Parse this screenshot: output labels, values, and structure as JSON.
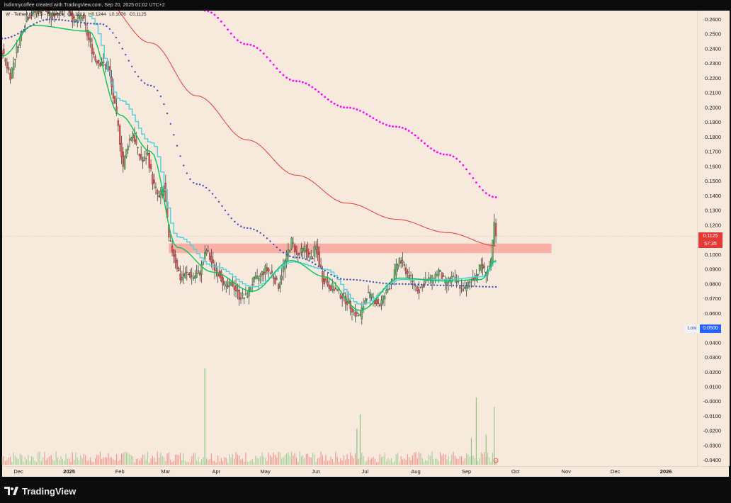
{
  "header": {
    "author_line": "lsdinmycoffee created with TradingView.com, Sep 20, 2025 01:02 UTC+2"
  },
  "legend": {
    "symbol": "W · TetherUS · 1D · Binance",
    "open": "O0.1212",
    "high": "H0.1244",
    "low": "L0.1076",
    "close": "C0.1125"
  },
  "price_tag": {
    "price": "0.1125",
    "countdown": "57:35"
  },
  "low_marker": {
    "label": "Low",
    "price": "0.0500"
  },
  "brand": {
    "name": "TradingView"
  },
  "colors": {
    "background": "#f7e9dc",
    "candle_up": "#66bb6a",
    "candle_down": "#ef5350",
    "ema_fast": "#4dd0e1",
    "ema_slow": "#00c853",
    "ma_dotted_blue": "#3f51b5",
    "ma_red": "#e53935",
    "ma_magenta": "#ff00ff",
    "resistance_zone": "#f7a8a0"
  },
  "chart_data": {
    "type": "candlestick",
    "symbol": "W/USDT",
    "interval": "1D",
    "exchange": "Binance",
    "y_ticks": [
      "0.2600",
      "0.2500",
      "0.2400",
      "0.2300",
      "0.2200",
      "0.2100",
      "0.2000",
      "0.1900",
      "0.1800",
      "0.1700",
      "0.1600",
      "0.1500",
      "0.1400",
      "0.1300",
      "0.1200",
      "0.1100",
      "0.1000",
      "0.0900",
      "0.0800",
      "0.0700",
      "0.0600",
      "0.0500",
      "0.0400",
      "0.0300",
      "0.0200",
      "0.0100",
      "-0.0000",
      "-0.0100",
      "-0.0200",
      "-0.0300",
      "-0.0400"
    ],
    "x_ticks": [
      "Dec",
      "2025",
      "Feb",
      "Mar",
      "Apr",
      "May",
      "Jun",
      "Jul",
      "Aug",
      "Sep",
      "Oct",
      "Nov",
      "Dec",
      "2026"
    ],
    "x_range": [
      "2024-11-21",
      "2026-01-20"
    ],
    "y_range": [
      -0.044,
      0.266
    ],
    "resistance_zone": {
      "low": 0.101,
      "high": 0.1075,
      "from": "2025-03-03",
      "to": "2025-10-23"
    },
    "close_series": [
      [
        "2024-11-21",
        0.238
      ],
      [
        "2024-11-26",
        0.222
      ],
      [
        "2024-12-01",
        0.244
      ],
      [
        "2024-12-06",
        0.262
      ],
      [
        "2024-12-11",
        0.265
      ],
      [
        "2024-12-16",
        0.268
      ],
      [
        "2024-12-21",
        0.262
      ],
      [
        "2024-12-26",
        0.266
      ],
      [
        "2024-12-31",
        0.27
      ],
      [
        "2025-01-04",
        0.258
      ],
      [
        "2025-01-09",
        0.262
      ],
      [
        "2025-01-13",
        0.246
      ],
      [
        "2025-01-17",
        0.233
      ],
      [
        "2025-01-21",
        0.23
      ],
      [
        "2025-01-25",
        0.227
      ],
      [
        "2025-01-28",
        0.207
      ],
      [
        "2025-01-31",
        0.186
      ],
      [
        "2025-02-03",
        0.16
      ],
      [
        "2025-02-06",
        0.176
      ],
      [
        "2025-02-09",
        0.183
      ],
      [
        "2025-02-12",
        0.17
      ],
      [
        "2025-02-15",
        0.163
      ],
      [
        "2025-02-18",
        0.168
      ],
      [
        "2025-02-21",
        0.15
      ],
      [
        "2025-02-25",
        0.138
      ],
      [
        "2025-02-28",
        0.147
      ],
      [
        "2025-03-03",
        0.11
      ],
      [
        "2025-03-06",
        0.1
      ],
      [
        "2025-03-10",
        0.084
      ],
      [
        "2025-03-14",
        0.087
      ],
      [
        "2025-03-18",
        0.085
      ],
      [
        "2025-03-22",
        0.088
      ],
      [
        "2025-03-26",
        0.103
      ],
      [
        "2025-03-30",
        0.092
      ],
      [
        "2025-04-03",
        0.087
      ],
      [
        "2025-04-07",
        0.077
      ],
      [
        "2025-04-11",
        0.08
      ],
      [
        "2025-04-15",
        0.072
      ],
      [
        "2025-04-19",
        0.071
      ],
      [
        "2025-04-23",
        0.081
      ],
      [
        "2025-04-27",
        0.084
      ],
      [
        "2025-05-01",
        0.09
      ],
      [
        "2025-05-05",
        0.087
      ],
      [
        "2025-05-09",
        0.079
      ],
      [
        "2025-05-13",
        0.095
      ],
      [
        "2025-05-17",
        0.109
      ],
      [
        "2025-05-21",
        0.099
      ],
      [
        "2025-05-25",
        0.104
      ],
      [
        "2025-05-29",
        0.097
      ],
      [
        "2025-06-01",
        0.105
      ],
      [
        "2025-06-05",
        0.084
      ],
      [
        "2025-06-09",
        0.079
      ],
      [
        "2025-06-13",
        0.076
      ],
      [
        "2025-06-17",
        0.072
      ],
      [
        "2025-06-21",
        0.067
      ],
      [
        "2025-06-25",
        0.06
      ],
      [
        "2025-06-28",
        0.058
      ],
      [
        "2025-07-02",
        0.073
      ],
      [
        "2025-07-06",
        0.07
      ],
      [
        "2025-07-10",
        0.066
      ],
      [
        "2025-07-14",
        0.074
      ],
      [
        "2025-07-18",
        0.084
      ],
      [
        "2025-07-22",
        0.097
      ],
      [
        "2025-07-26",
        0.089
      ],
      [
        "2025-07-30",
        0.081
      ],
      [
        "2025-08-03",
        0.076
      ],
      [
        "2025-08-07",
        0.082
      ],
      [
        "2025-08-11",
        0.083
      ],
      [
        "2025-08-15",
        0.089
      ],
      [
        "2025-08-19",
        0.08
      ],
      [
        "2025-08-23",
        0.084
      ],
      [
        "2025-08-27",
        0.08
      ],
      [
        "2025-08-31",
        0.076
      ],
      [
        "2025-09-04",
        0.083
      ],
      [
        "2025-09-07",
        0.086
      ],
      [
        "2025-09-10",
        0.093
      ],
      [
        "2025-09-13",
        0.088
      ],
      [
        "2025-09-16",
        0.094
      ],
      [
        "2025-09-18",
        0.121
      ],
      [
        "2025-09-19",
        0.1125
      ]
    ],
    "last_candle": {
      "open": 0.1212,
      "high": 0.1244,
      "low": 0.1076,
      "close": 0.1125
    },
    "moving_averages": [
      {
        "color": "#4dd0e1",
        "style": "step-line",
        "points": [
          [
            "2025-01-13",
            0.262
          ],
          [
            "2025-02-01",
            0.205
          ],
          [
            "2025-02-20",
            0.176
          ],
          [
            "2025-03-08",
            0.112
          ],
          [
            "2025-03-30",
            0.092
          ],
          [
            "2025-04-23",
            0.078
          ],
          [
            "2025-05-17",
            0.095
          ],
          [
            "2025-06-06",
            0.09
          ],
          [
            "2025-06-28",
            0.066
          ],
          [
            "2025-07-22",
            0.083
          ],
          [
            "2025-08-20",
            0.083
          ],
          [
            "2025-09-10",
            0.085
          ],
          [
            "2025-09-19",
            0.096
          ]
        ]
      },
      {
        "color": "#00c853",
        "style": "line",
        "points": [
          [
            "2024-11-21",
            0.235
          ],
          [
            "2024-12-10",
            0.256
          ],
          [
            "2025-01-13",
            0.252
          ],
          [
            "2025-02-01",
            0.195
          ],
          [
            "2025-02-20",
            0.17
          ],
          [
            "2025-03-08",
            0.105
          ],
          [
            "2025-03-30",
            0.088
          ],
          [
            "2025-04-23",
            0.075
          ],
          [
            "2025-05-17",
            0.096
          ],
          [
            "2025-06-06",
            0.085
          ],
          [
            "2025-06-28",
            0.062
          ],
          [
            "2025-07-22",
            0.084
          ],
          [
            "2025-08-20",
            0.082
          ],
          [
            "2025-09-10",
            0.083
          ],
          [
            "2025-09-19",
            0.096
          ]
        ]
      },
      {
        "color": "#3f51b5",
        "style": "dotted",
        "points": [
          [
            "2024-11-21",
            0.247
          ],
          [
            "2024-12-20",
            0.26
          ],
          [
            "2025-01-20",
            0.257
          ],
          [
            "2025-02-20",
            0.215
          ],
          [
            "2025-03-20",
            0.148
          ],
          [
            "2025-04-20",
            0.118
          ],
          [
            "2025-05-20",
            0.098
          ],
          [
            "2025-06-20",
            0.083
          ],
          [
            "2025-07-20",
            0.08
          ],
          [
            "2025-08-20",
            0.079
          ],
          [
            "2025-09-19",
            0.078
          ]
        ]
      },
      {
        "color": "#e53935",
        "style": "line",
        "points": [
          [
            "2025-01-20",
            0.275
          ],
          [
            "2025-02-20",
            0.244
          ],
          [
            "2025-03-20",
            0.208
          ],
          [
            "2025-04-20",
            0.178
          ],
          [
            "2025-05-20",
            0.154
          ],
          [
            "2025-06-20",
            0.135
          ],
          [
            "2025-07-20",
            0.124
          ],
          [
            "2025-08-20",
            0.115
          ],
          [
            "2025-09-19",
            0.106
          ]
        ]
      },
      {
        "color": "#ff00ff",
        "style": "dotted-thick",
        "points": [
          [
            "2025-03-25",
            0.266
          ],
          [
            "2025-04-20",
            0.243
          ],
          [
            "2025-05-20",
            0.218
          ],
          [
            "2025-06-20",
            0.2
          ],
          [
            "2025-07-20",
            0.187
          ],
          [
            "2025-08-20",
            0.168
          ],
          [
            "2025-09-19",
            0.139
          ]
        ]
      }
    ],
    "volume_peaks": [
      [
        "2025-03-25",
        0.8
      ],
      [
        "2025-06-26",
        0.3
      ],
      [
        "2025-06-28",
        0.42
      ],
      [
        "2025-09-07",
        0.56
      ],
      [
        "2025-09-04",
        0.22
      ],
      [
        "2025-09-13",
        0.25
      ],
      [
        "2025-09-18",
        0.48
      ]
    ]
  }
}
